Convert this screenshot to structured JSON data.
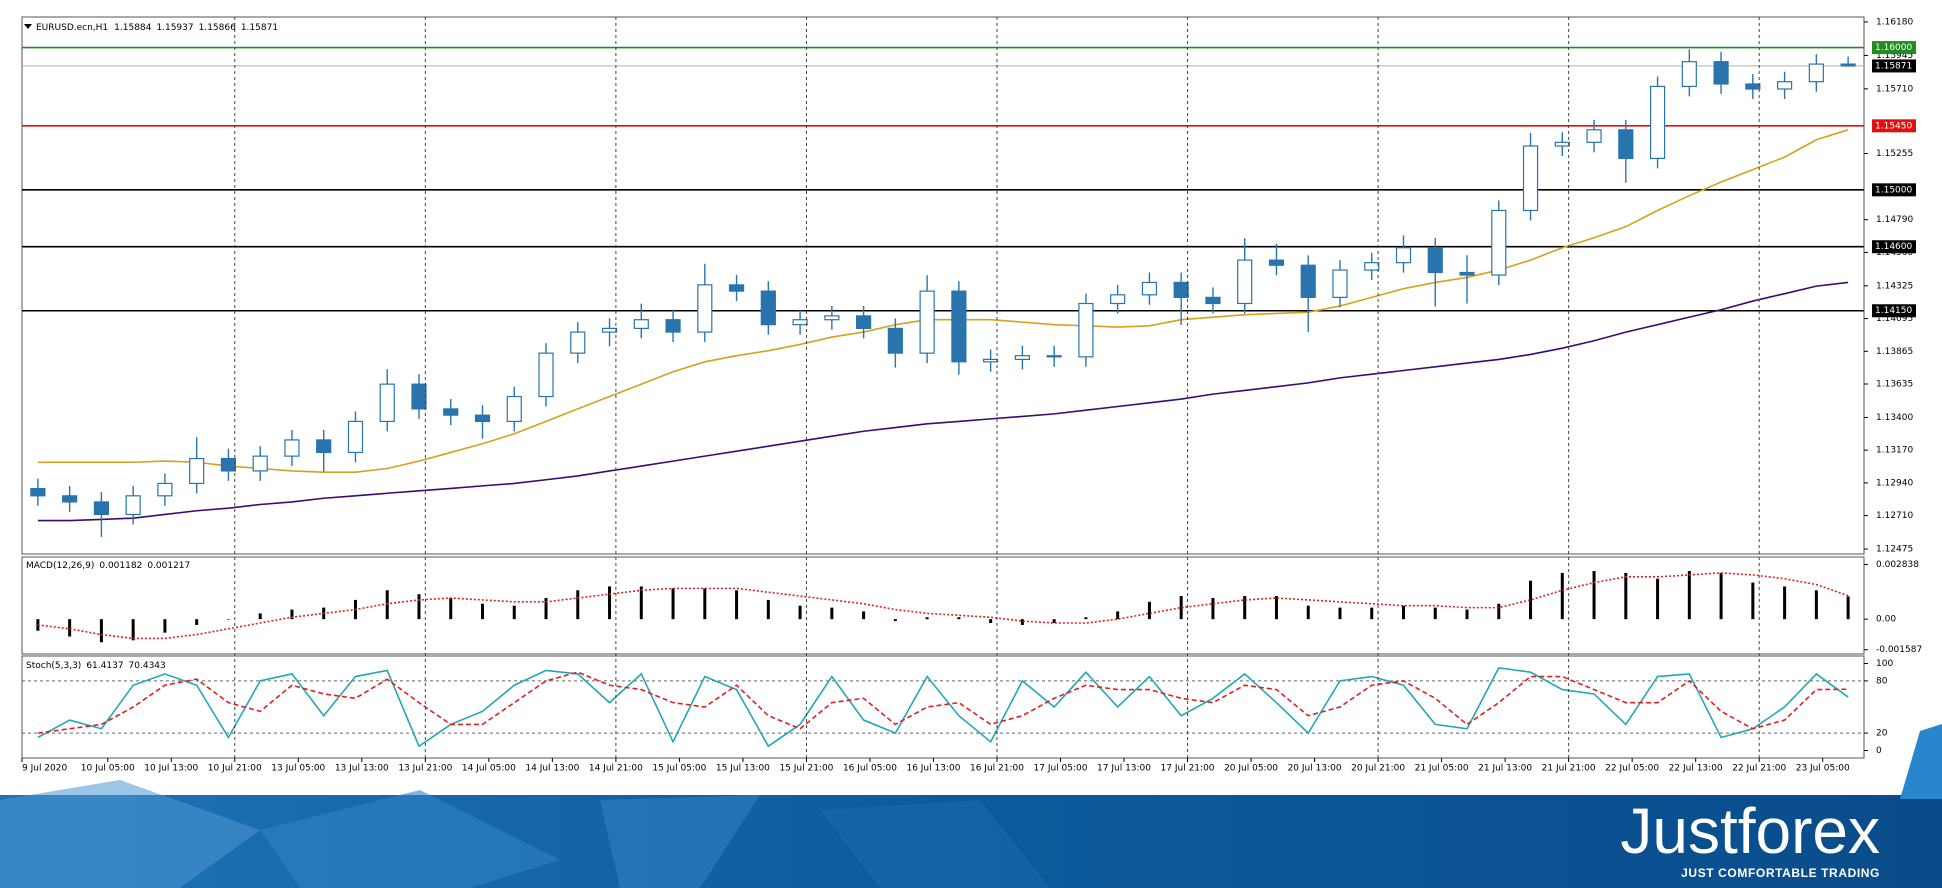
{
  "chart_data": [
    {
      "type": "candlestick",
      "symbol": "EURUSD.ecn,H1",
      "color": "#2a74ad",
      "open": [
        1.129,
        1.12849,
        1.12806,
        1.12718,
        1.12849,
        1.12936,
        1.13111,
        1.13024,
        1.13128,
        1.13242,
        1.13154,
        1.13372,
        1.13634,
        1.1346,
        1.13416,
        1.13372,
        1.13547,
        1.13852,
        1.14,
        1.14026,
        1.14087,
        1.14,
        1.14332,
        1.14288,
        1.14052,
        1.14087,
        1.14114,
        1.14026,
        1.13852,
        1.14288,
        1.13791,
        1.13808,
        1.13834,
        1.13826,
        1.14201,
        1.14262,
        1.14349,
        1.14244,
        1.14201,
        1.14506,
        1.1447,
        1.14244,
        1.14436,
        1.14488,
        1.14593,
        1.14419,
        1.14401,
        1.14855,
        1.15308,
        1.15334,
        1.15422,
        1.15221,
        1.15727,
        1.15901,
        1.15744,
        1.15709,
        1.1576,
        1.15884
      ],
      "high": [
        1.1297,
        1.12919,
        1.12876,
        1.12919,
        1.13006,
        1.1326,
        1.13181,
        1.13198,
        1.13312,
        1.13312,
        1.13442,
        1.1374,
        1.13704,
        1.1353,
        1.13486,
        1.13617,
        1.13922,
        1.1407,
        1.14096,
        1.142,
        1.14157,
        1.1448,
        1.14402,
        1.14358,
        1.14157,
        1.14184,
        1.14184,
        1.14096,
        1.144,
        1.14358,
        1.13878,
        1.13904,
        1.13904,
        1.14271,
        1.14332,
        1.14419,
        1.14419,
        1.14314,
        1.1466,
        1.1462,
        1.1454,
        1.14506,
        1.14558,
        1.1468,
        1.14663,
        1.1454,
        1.14925,
        1.154,
        1.15404,
        1.15492,
        1.15492,
        1.15797,
        1.15988,
        1.15971,
        1.15814,
        1.1583,
        1.15954,
        1.15937
      ],
      "low": [
        1.12779,
        1.12736,
        1.1256,
        1.12648,
        1.12779,
        1.12866,
        1.12954,
        1.12954,
        1.13058,
        1.1302,
        1.13084,
        1.13302,
        1.1339,
        1.13346,
        1.1325,
        1.13302,
        1.13477,
        1.13782,
        1.139,
        1.13956,
        1.1393,
        1.1393,
        1.14218,
        1.13982,
        1.13982,
        1.14017,
        1.13956,
        1.1375,
        1.13782,
        1.137,
        1.13721,
        1.13738,
        1.13756,
        1.13756,
        1.14131,
        1.14192,
        1.1405,
        1.14131,
        1.14131,
        1.144,
        1.14,
        1.14174,
        1.14366,
        1.14418,
        1.1418,
        1.142,
        1.14331,
        1.14785,
        1.15238,
        1.15264,
        1.1505,
        1.15151,
        1.15657,
        1.15674,
        1.15639,
        1.15639,
        1.1569,
        1.15866
      ],
      "close": [
        1.12849,
        1.12806,
        1.12718,
        1.12849,
        1.12936,
        1.13111,
        1.13024,
        1.13128,
        1.13242,
        1.13154,
        1.13372,
        1.13634,
        1.1346,
        1.13416,
        1.13372,
        1.13547,
        1.13852,
        1.14,
        1.14026,
        1.14087,
        1.14,
        1.14332,
        1.14288,
        1.14052,
        1.14087,
        1.14114,
        1.14026,
        1.13852,
        1.14288,
        1.13791,
        1.13808,
        1.13834,
        1.13826,
        1.14201,
        1.14262,
        1.14349,
        1.14244,
        1.14201,
        1.14506,
        1.1447,
        1.14244,
        1.14436,
        1.14488,
        1.14593,
        1.14419,
        1.14401,
        1.14855,
        1.15308,
        1.15334,
        1.15422,
        1.15221,
        1.15727,
        1.15901,
        1.15744,
        1.15709,
        1.1576,
        1.15884,
        1.15871
      ],
      "series": [
        {
          "color": "#d4a21c",
          "style": "solid",
          "values": [
            1.13085,
            1.13085,
            1.13085,
            1.13085,
            1.13093,
            1.13085,
            1.13058,
            1.13041,
            1.13024,
            1.13015,
            1.13015,
            1.13041,
            1.13093,
            1.13154,
            1.13215,
            1.13285,
            1.13372,
            1.1346,
            1.13547,
            1.13634,
            1.13721,
            1.13791,
            1.13834,
            1.13869,
            1.13913,
            1.13965,
            1.14,
            1.14052,
            1.14087,
            1.14087,
            1.14087,
            1.1407,
            1.14052,
            1.14044,
            1.14035,
            1.14044,
            1.14087,
            1.14105,
            1.14122,
            1.14131,
            1.1414,
            1.14183,
            1.14244,
            1.14305,
            1.14349,
            1.14384,
            1.14436,
            1.14506,
            1.14593,
            1.14663,
            1.14741,
            1.14855,
            1.14959,
            1.15055,
            1.15142,
            1.1523,
            1.15352,
            1.15422
          ]
        },
        {
          "color": "#3d0a6e",
          "style": "solid",
          "values": [
            1.12675,
            1.12675,
            1.12683,
            1.12692,
            1.12718,
            1.12744,
            1.12762,
            1.12788,
            1.12806,
            1.12832,
            1.12849,
            1.12867,
            1.12884,
            1.12901,
            1.12919,
            1.12936,
            1.12962,
            1.12989,
            1.13024,
            1.13058,
            1.13093,
            1.13128,
            1.13163,
            1.13198,
            1.13233,
            1.13268,
            1.13303,
            1.13329,
            1.13355,
            1.13372,
            1.1339,
            1.13407,
            1.13425,
            1.13451,
            1.13477,
            1.13503,
            1.13529,
            1.13564,
            1.1359,
            1.13616,
            1.13643,
            1.13678,
            1.13704,
            1.1373,
            1.13756,
            1.13782,
            1.13808,
            1.13843,
            1.13887,
            1.13939,
            1.14,
            1.14052,
            1.14105,
            1.14157,
            1.14218,
            1.1427,
            1.14323,
            1.14349
          ]
        }
      ],
      "levels": [
        {
          "value": 1.16,
          "label": "1.16000",
          "color": "#1e8c1e"
        },
        {
          "value": 1.1545,
          "label": "1.15450",
          "color": "#e01010"
        },
        {
          "value": 1.15,
          "label": "1.15000",
          "color": "#000000"
        },
        {
          "value": 1.146,
          "label": "1.14600",
          "color": "#000000"
        },
        {
          "value": 1.1415,
          "label": "1.14150",
          "color": "#000000"
        }
      ],
      "xlim": [
        0,
        58
      ],
      "ylim": [
        1.1244,
        1.16215
      ],
      "yticks": [
        {
          "value": 1.1618,
          "label": "1.16180"
        },
        1.15945,
        {
          "value": 1.1571,
          "label": "1.15710"
        },
        1.15255,
        {
          "value": 1.1479,
          "label": "1.14790"
        },
        {
          "value": 1.1456,
          "label": "1.14560"
        },
        1.14325,
        1.14095,
        1.13865,
        1.13635,
        {
          "value": 1.134,
          "label": "1.13400"
        },
        {
          "value": 1.1317,
          "label": "1.13170"
        },
        {
          "value": 1.1294,
          "label": "1.12940"
        },
        {
          "value": 1.1271,
          "label": "1.12710"
        },
        1.12475
      ]
    },
    {
      "type": "bar",
      "title": "MACD(12,26,9)",
      "series": [
        {
          "color": "#000000",
          "style": "histogram",
          "values": [
            -0.0006,
            -0.0009,
            -0.0012,
            -0.0011,
            -0.0007,
            -0.0003,
            0,
            0.0003,
            0.0005,
            0.0006,
            0.001,
            0.0015,
            0.0013,
            0.0011,
            0.0008,
            0.0007,
            0.0011,
            0.0015,
            0.0017,
            0.0017,
            0.0016,
            0.0016,
            0.0015,
            0.001,
            0.0007,
            0.0006,
            0.0004,
            -0.0001,
            0.0001,
            0.0001,
            -0.0002,
            -0.0003,
            -0.0002,
            0.0001,
            0.0004,
            0.0009,
            0.0012,
            0.0011,
            0.0012,
            0.0012,
            0.0007,
            0.0006,
            0.0006,
            0.0007,
            0.0006,
            0.0005,
            0.0008,
            0.002,
            0.0024,
            0.0025,
            0.0024,
            0.0021,
            0.0025,
            0.0024,
            0.0019,
            0.0017,
            0.0015,
            0.001182
          ]
        },
        {
          "color": "#e02020",
          "style": "dotted",
          "values": [
            -0.0003,
            -0.0005,
            -0.0008,
            -0.001,
            -0.001,
            -0.0008,
            -0.0005,
            -0.0002,
            0.0001,
            0.0003,
            0.0005,
            0.0008,
            0.001,
            0.0011,
            0.001,
            0.0009,
            0.0009,
            0.0011,
            0.0013,
            0.0015,
            0.0016,
            0.0016,
            0.0016,
            0.0014,
            0.0012,
            0.001,
            0.0008,
            0.0005,
            0.0003,
            0.0002,
            0.0001,
            -0.0001,
            -0.0002,
            -0.0002,
            0,
            0.0003,
            0.0006,
            0.0008,
            0.001,
            0.0011,
            0.001,
            0.0009,
            0.0008,
            0.0007,
            0.0007,
            0.0006,
            0.0006,
            0.001,
            0.0015,
            0.0019,
            0.0022,
            0.0022,
            0.0023,
            0.0024,
            0.0023,
            0.0021,
            0.0018,
            0.001217
          ]
        }
      ],
      "xlim": [
        0,
        58
      ],
      "ylim": [
        -0.00181,
        0.00323
      ],
      "yticks": [
        0.002838,
        {
          "value": 0,
          "label": "0.00"
        },
        -0.001587
      ]
    },
    {
      "type": "line",
      "title": "Stoch(5,3,3)",
      "series": [
        {
          "color": "#20a8b4",
          "style": "solid",
          "values": [
            15,
            35,
            25,
            75,
            88,
            75,
            15,
            80,
            88,
            40,
            85,
            92,
            5,
            30,
            45,
            75,
            92,
            88,
            55,
            88,
            10,
            85,
            70,
            5,
            30,
            85,
            35,
            20,
            85,
            40,
            10,
            80,
            50,
            90,
            50,
            85,
            40,
            60,
            88,
            55,
            20,
            80,
            85,
            75,
            30,
            25,
            95,
            90,
            70,
            65,
            30,
            85,
            88,
            15,
            25,
            50,
            88,
            61.4137
          ]
        },
        {
          "color": "#e02020",
          "style": "dashed",
          "values": [
            20,
            25,
            30,
            50,
            75,
            82,
            55,
            45,
            75,
            65,
            60,
            82,
            55,
            30,
            30,
            55,
            80,
            90,
            75,
            70,
            55,
            50,
            75,
            40,
            25,
            55,
            60,
            30,
            50,
            55,
            30,
            40,
            60,
            75,
            70,
            70,
            60,
            55,
            75,
            70,
            40,
            50,
            75,
            80,
            60,
            30,
            55,
            85,
            85,
            70,
            55,
            55,
            80,
            45,
            25,
            35,
            70,
            70.4343
          ]
        }
      ],
      "levels": [
        80,
        20
      ],
      "xlim": [
        0,
        58
      ],
      "ylim": [
        -8.6,
        108.6
      ],
      "yticks": [
        100,
        80,
        20,
        0
      ],
      "grid": true,
      "xticks": [
        {
          "value": 0,
          "label": "9 Jul 2020"
        },
        {
          "value": 2.7,
          "label": "10 Jul 05:00"
        },
        {
          "value": 4.7,
          "label": "10 Jul 13:00"
        },
        {
          "value": 6.7,
          "label": "10 Jul 21:00"
        },
        {
          "value": 8.7,
          "label": "13 Jul 05:00"
        },
        {
          "value": 10.7,
          "label": "13 Jul 13:00"
        },
        {
          "value": 12.7,
          "label": "13 Jul 21:00"
        },
        {
          "value": 14.7,
          "label": "14 Jul 05:00"
        },
        {
          "value": 16.7,
          "label": "14 Jul 13:00"
        },
        {
          "value": 18.7,
          "label": "14 Jul 21:00"
        },
        {
          "value": 20.7,
          "label": "15 Jul 05:00"
        },
        {
          "value": 22.7,
          "label": "15 Jul 13:00"
        },
        {
          "value": 24.7,
          "label": "15 Jul 21:00"
        },
        {
          "value": 26.7,
          "label": "16 Jul 05:00"
        },
        {
          "value": 28.7,
          "label": "16 Jul 13:00"
        },
        {
          "value": 30.7,
          "label": "16 Jul 21:00"
        },
        {
          "value": 32.7,
          "label": "17 Jul 05:00"
        },
        {
          "value": 34.7,
          "label": "17 Jul 13:00"
        },
        {
          "value": 36.7,
          "label": "17 Jul 21:00"
        },
        {
          "value": 38.7,
          "label": "20 Jul 05:00"
        },
        {
          "value": 40.7,
          "label": "20 Jul 13:00"
        },
        {
          "value": 42.7,
          "label": "20 Jul 21:00"
        },
        {
          "value": 44.7,
          "label": "21 Jul 05:00"
        },
        {
          "value": 46.7,
          "label": "21 Jul 13:00"
        },
        {
          "value": 48.7,
          "label": "21 Jul 21:00"
        },
        {
          "value": 50.7,
          "label": "22 Jul 05:00"
        },
        {
          "value": 52.7,
          "label": "22 Jul 13:00"
        },
        {
          "value": 54.7,
          "label": "22 Jul 21:00"
        },
        {
          "value": 56.7,
          "label": "23 Jul 05:00"
        }
      ]
    }
  ],
  "footer": {
    "brand": "Justforex",
    "tagline": "JUST COMFORTABLE TRADING"
  }
}
